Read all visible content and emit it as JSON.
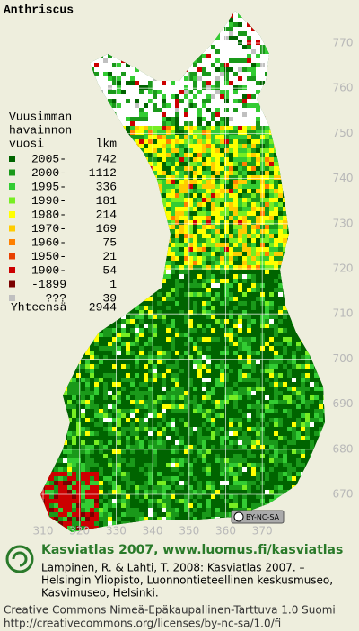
{
  "title": "Anthriscus",
  "legend": {
    "header": [
      "Vuusimman",
      "havainnon",
      "vuosi"
    ],
    "count_header": "lkm",
    "rows": [
      {
        "label": "2005-",
        "count": 742,
        "color": "#006400"
      },
      {
        "label": "2000-",
        "count": 1112,
        "color": "#1a991a"
      },
      {
        "label": "1995-",
        "count": 336,
        "color": "#33cc33"
      },
      {
        "label": "1990-",
        "count": 181,
        "color": "#77ee22"
      },
      {
        "label": "1980-",
        "count": 214,
        "color": "#ffff00"
      },
      {
        "label": "1970-",
        "count": 169,
        "color": "#ffcc00"
      },
      {
        "label": "1960-",
        "count": 75,
        "color": "#ff8000"
      },
      {
        "label": "1950-",
        "count": 21,
        "color": "#e84000"
      },
      {
        "label": "1900-",
        "count": 54,
        "color": "#cc0000"
      },
      {
        "label": "-1899",
        "count": 1,
        "color": "#7a0000"
      },
      {
        "label": "???",
        "count": 39,
        "color": "#c0c0c0"
      }
    ],
    "total_label": "Yhteensä",
    "total": 2944
  },
  "map": {
    "xticks": [
      310,
      320,
      330,
      340,
      350,
      360,
      370
    ],
    "yticks": [
      670,
      680,
      690,
      700,
      710,
      720,
      730,
      740,
      750,
      760,
      770
    ]
  },
  "license_badge": "BY-NC-SA",
  "footer": {
    "heading": "Kasviatlas 2007, www.luomus.fi/kasviatlas",
    "citation": [
      "Lampinen, R. & Lahti, T. 2008: Kasviatlas 2007. –",
      "Helsingin Yliopisto, Luonnontieteellinen keskusmuseo,",
      "Kasvimuseo, Helsinki."
    ],
    "license": [
      "Creative Commons Nimeä-Epäkaupallinen-Tarttuva 1.0 Suomi",
      "http://creativecommons.org/licenses/by-nc-sa/1.0/fi"
    ]
  }
}
